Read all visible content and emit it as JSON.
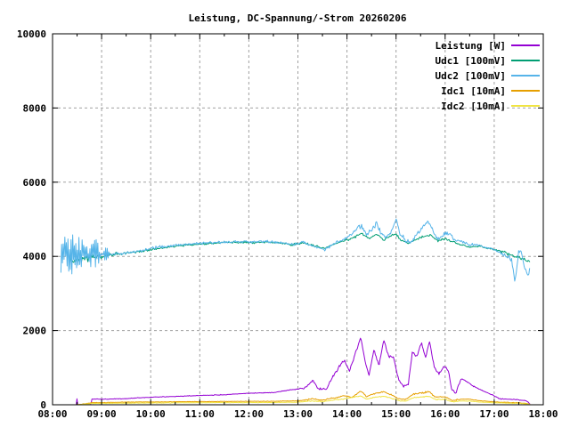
{
  "chart_data": {
    "type": "line",
    "title": "Leistung, DC-Spannung/-Strom 20260206",
    "xlabel": "",
    "ylabel": "",
    "grid": true,
    "legend_position": "top-right-inside",
    "x_axis": {
      "range_hours": [
        8,
        18
      ],
      "tick_labels": [
        "08:00",
        "09:00",
        "10:00",
        "11:00",
        "12:00",
        "13:00",
        "14:00",
        "15:00",
        "16:00",
        "17:00",
        "18:00"
      ],
      "minor_step_hours": 0.5
    },
    "y_axis": {
      "range": [
        0,
        10000
      ],
      "tick_values": [
        0,
        2000,
        4000,
        6000,
        8000,
        10000
      ],
      "tick_labels": [
        "0",
        "2000",
        "4000",
        "6000",
        "8000",
        "10000"
      ]
    },
    "colors": {
      "background": "#ffffff",
      "axis": "#000000",
      "grid": "#a0a0a0"
    },
    "series": [
      {
        "name": "Leistung [W]",
        "color": "#9400d3",
        "points": [
          [
            8.45,
            0
          ],
          [
            8.49,
            0
          ],
          [
            8.5,
            200
          ],
          [
            8.51,
            0
          ],
          [
            8.78,
            0
          ],
          [
            8.8,
            150
          ],
          [
            9.0,
            150
          ],
          [
            9.5,
            165
          ],
          [
            10.0,
            205
          ],
          [
            10.5,
            225
          ],
          [
            11.0,
            250
          ],
          [
            11.5,
            270
          ],
          [
            12.0,
            310
          ],
          [
            12.5,
            330
          ],
          [
            12.85,
            400
          ],
          [
            13.05,
            430
          ],
          [
            13.18,
            480
          ],
          [
            13.3,
            670
          ],
          [
            13.42,
            430
          ],
          [
            13.58,
            420
          ],
          [
            13.72,
            780
          ],
          [
            13.85,
            1050
          ],
          [
            13.95,
            1200
          ],
          [
            14.05,
            900
          ],
          [
            14.15,
            1300
          ],
          [
            14.28,
            1820
          ],
          [
            14.38,
            1100
          ],
          [
            14.45,
            800
          ],
          [
            14.55,
            1500
          ],
          [
            14.65,
            1050
          ],
          [
            14.75,
            1750
          ],
          [
            14.85,
            1300
          ],
          [
            14.95,
            1280
          ],
          [
            15.05,
            680
          ],
          [
            15.15,
            500
          ],
          [
            15.25,
            540
          ],
          [
            15.33,
            1420
          ],
          [
            15.42,
            1300
          ],
          [
            15.52,
            1680
          ],
          [
            15.6,
            1250
          ],
          [
            15.68,
            1730
          ],
          [
            15.78,
            1000
          ],
          [
            15.88,
            820
          ],
          [
            15.98,
            1050
          ],
          [
            16.07,
            900
          ],
          [
            16.13,
            420
          ],
          [
            16.22,
            320
          ],
          [
            16.32,
            700
          ],
          [
            16.42,
            650
          ],
          [
            16.55,
            520
          ],
          [
            16.7,
            420
          ],
          [
            16.85,
            330
          ],
          [
            17.0,
            240
          ],
          [
            17.1,
            160
          ],
          [
            17.3,
            150
          ],
          [
            17.5,
            130
          ],
          [
            17.65,
            110
          ],
          [
            17.7,
            60
          ],
          [
            17.73,
            20
          ]
        ],
        "noise": [
          [
            8.45,
            8.8,
            0
          ],
          [
            8.8,
            13.0,
            12
          ],
          [
            13.0,
            16.5,
            45
          ],
          [
            16.5,
            17.73,
            15
          ]
        ]
      },
      {
        "name": "Udc1 [100mV]",
        "color": "#009e73",
        "points": [
          [
            8.35,
            3900
          ],
          [
            8.6,
            3930
          ],
          [
            9.0,
            4000
          ],
          [
            9.3,
            4050
          ],
          [
            9.7,
            4120
          ],
          [
            10.0,
            4180
          ],
          [
            10.4,
            4260
          ],
          [
            10.8,
            4310
          ],
          [
            11.2,
            4350
          ],
          [
            11.6,
            4380
          ],
          [
            12.0,
            4370
          ],
          [
            12.4,
            4390
          ],
          [
            12.7,
            4350
          ],
          [
            12.9,
            4310
          ],
          [
            13.1,
            4360
          ],
          [
            13.35,
            4280
          ],
          [
            13.55,
            4220
          ],
          [
            13.75,
            4330
          ],
          [
            13.95,
            4420
          ],
          [
            14.15,
            4520
          ],
          [
            14.3,
            4620
          ],
          [
            14.45,
            4480
          ],
          [
            14.6,
            4600
          ],
          [
            14.75,
            4450
          ],
          [
            14.9,
            4550
          ],
          [
            15.0,
            4620
          ],
          [
            15.1,
            4420
          ],
          [
            15.25,
            4350
          ],
          [
            15.4,
            4450
          ],
          [
            15.55,
            4530
          ],
          [
            15.7,
            4580
          ],
          [
            15.85,
            4420
          ],
          [
            16.0,
            4480
          ],
          [
            16.15,
            4400
          ],
          [
            16.3,
            4320
          ],
          [
            16.5,
            4250
          ],
          [
            16.7,
            4270
          ],
          [
            16.9,
            4210
          ],
          [
            17.1,
            4160
          ],
          [
            17.3,
            4060
          ],
          [
            17.45,
            3980
          ],
          [
            17.6,
            3920
          ],
          [
            17.73,
            3820
          ]
        ],
        "noise": [
          [
            8.35,
            9.3,
            110
          ],
          [
            9.3,
            17.0,
            40
          ],
          [
            17.0,
            17.73,
            60
          ]
        ]
      },
      {
        "name": "Udc2 [100mV]",
        "color": "#56b4e9",
        "spiky_until": 9.15,
        "points": [
          [
            8.17,
            4050
          ],
          [
            9.1,
            4050
          ],
          [
            9.4,
            4080
          ],
          [
            9.7,
            4130
          ],
          [
            10.0,
            4210
          ],
          [
            10.4,
            4290
          ],
          [
            10.8,
            4330
          ],
          [
            11.2,
            4370
          ],
          [
            11.6,
            4400
          ],
          [
            12.0,
            4390
          ],
          [
            12.4,
            4410
          ],
          [
            12.7,
            4360
          ],
          [
            12.9,
            4320
          ],
          [
            13.1,
            4380
          ],
          [
            13.35,
            4260
          ],
          [
            13.55,
            4180
          ],
          [
            13.75,
            4350
          ],
          [
            13.95,
            4480
          ],
          [
            14.1,
            4600
          ],
          [
            14.2,
            4750
          ],
          [
            14.3,
            4820
          ],
          [
            14.4,
            4600
          ],
          [
            14.5,
            4700
          ],
          [
            14.6,
            4880
          ],
          [
            14.7,
            4600
          ],
          [
            14.8,
            4500
          ],
          [
            14.9,
            4650
          ],
          [
            15.0,
            5000
          ],
          [
            15.08,
            4600
          ],
          [
            15.2,
            4420
          ],
          [
            15.3,
            4380
          ],
          [
            15.45,
            4650
          ],
          [
            15.55,
            4800
          ],
          [
            15.65,
            4950
          ],
          [
            15.75,
            4700
          ],
          [
            15.85,
            4450
          ],
          [
            15.95,
            4550
          ],
          [
            16.05,
            4650
          ],
          [
            16.2,
            4450
          ],
          [
            16.35,
            4400
          ],
          [
            16.5,
            4300
          ],
          [
            16.65,
            4320
          ],
          [
            16.8,
            4250
          ],
          [
            16.95,
            4200
          ],
          [
            17.1,
            4100
          ],
          [
            17.25,
            4000
          ],
          [
            17.35,
            3950
          ],
          [
            17.42,
            3300
          ],
          [
            17.5,
            4100
          ],
          [
            17.55,
            4150
          ],
          [
            17.62,
            3700
          ],
          [
            17.68,
            3500
          ],
          [
            17.73,
            3620
          ]
        ],
        "noise": [
          [
            8.17,
            8.55,
            580
          ],
          [
            8.55,
            8.95,
            420
          ],
          [
            8.95,
            9.15,
            180
          ],
          [
            9.15,
            14.0,
            55
          ],
          [
            14.0,
            16.2,
            80
          ],
          [
            16.2,
            17.3,
            55
          ],
          [
            17.3,
            17.73,
            120
          ]
        ]
      },
      {
        "name": "Idc1 [10mA]",
        "color": "#e69f00",
        "points": [
          [
            8.45,
            0
          ],
          [
            8.6,
            15
          ],
          [
            8.8,
            55
          ],
          [
            9.5,
            70
          ],
          [
            10.0,
            75
          ],
          [
            10.5,
            80
          ],
          [
            11.0,
            85
          ],
          [
            11.5,
            88
          ],
          [
            12.0,
            92
          ],
          [
            12.5,
            95
          ],
          [
            13.0,
            105
          ],
          [
            13.3,
            160
          ],
          [
            13.5,
            120
          ],
          [
            13.75,
            190
          ],
          [
            13.95,
            240
          ],
          [
            14.1,
            200
          ],
          [
            14.28,
            370
          ],
          [
            14.4,
            220
          ],
          [
            14.55,
            300
          ],
          [
            14.75,
            350
          ],
          [
            14.9,
            270
          ],
          [
            15.05,
            160
          ],
          [
            15.2,
            140
          ],
          [
            15.35,
            290
          ],
          [
            15.55,
            330
          ],
          [
            15.68,
            350
          ],
          [
            15.8,
            210
          ],
          [
            16.0,
            220
          ],
          [
            16.15,
            110
          ],
          [
            16.3,
            150
          ],
          [
            16.5,
            150
          ],
          [
            16.7,
            110
          ],
          [
            16.9,
            90
          ],
          [
            17.1,
            70
          ],
          [
            17.3,
            60
          ],
          [
            17.5,
            55
          ],
          [
            17.7,
            30
          ],
          [
            17.73,
            10
          ]
        ],
        "noise": [
          [
            8.45,
            13.0,
            10
          ],
          [
            13.0,
            16.3,
            25
          ],
          [
            16.3,
            17.73,
            10
          ]
        ]
      },
      {
        "name": "Idc2 [10mA]",
        "color": "#f0e442",
        "points": [
          [
            8.45,
            0
          ],
          [
            8.6,
            10
          ],
          [
            8.8,
            35
          ],
          [
            9.5,
            45
          ],
          [
            10.5,
            52
          ],
          [
            11.5,
            58
          ],
          [
            12.5,
            62
          ],
          [
            13.0,
            70
          ],
          [
            13.3,
            105
          ],
          [
            13.5,
            80
          ],
          [
            13.75,
            130
          ],
          [
            13.95,
            160
          ],
          [
            14.28,
            240
          ],
          [
            14.4,
            150
          ],
          [
            14.55,
            200
          ],
          [
            14.75,
            230
          ],
          [
            14.9,
            180
          ],
          [
            15.05,
            110
          ],
          [
            15.2,
            95
          ],
          [
            15.35,
            190
          ],
          [
            15.55,
            215
          ],
          [
            15.68,
            230
          ],
          [
            15.8,
            140
          ],
          [
            16.0,
            145
          ],
          [
            16.15,
            75
          ],
          [
            16.3,
            100
          ],
          [
            16.5,
            100
          ],
          [
            16.7,
            75
          ],
          [
            16.9,
            60
          ],
          [
            17.1,
            50
          ],
          [
            17.3,
            42
          ],
          [
            17.5,
            38
          ],
          [
            17.7,
            20
          ],
          [
            17.73,
            8
          ]
        ],
        "noise": [
          [
            8.45,
            13.0,
            8
          ],
          [
            13.0,
            16.3,
            18
          ],
          [
            16.3,
            17.73,
            8
          ]
        ]
      }
    ]
  }
}
